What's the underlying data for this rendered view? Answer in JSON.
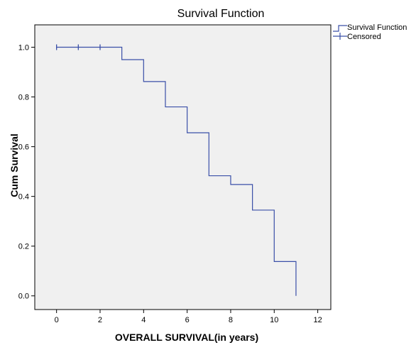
{
  "chart_data": {
    "type": "line",
    "title": "Survival Function",
    "xlabel": "OVERALL SURVIVAL(in years)",
    "ylabel": "Cum Survival",
    "xlim": [
      -1,
      12.6
    ],
    "ylim": [
      -0.055,
      1.09
    ],
    "x_ticks": [
      0,
      2,
      4,
      6,
      8,
      10,
      12
    ],
    "y_ticks": [
      0.0,
      0.2,
      0.4,
      0.6,
      0.8,
      1.0
    ],
    "x_tick_labels": [
      "0",
      "2",
      "4",
      "6",
      "8",
      "10",
      "12"
    ],
    "y_tick_labels": [
      "0.0",
      "0.2",
      "0.4",
      "0.6",
      "0.8",
      "1.0"
    ],
    "grid": false,
    "legend_position": "top-right (outside plot)",
    "series": [
      {
        "name": "Survival Function",
        "step": true,
        "x": [
          0,
          3,
          4,
          5,
          6,
          7,
          8,
          9,
          10,
          11,
          11
        ],
        "y": [
          1.0,
          0.95,
          0.862,
          0.76,
          0.656,
          0.483,
          0.448,
          0.345,
          0.138,
          0.138,
          0.0
        ],
        "color": "#3a4fa8"
      },
      {
        "name": "Censored",
        "marker": "+",
        "x": [
          0,
          1,
          2
        ],
        "y": [
          1.0,
          1.0,
          1.0
        ],
        "color": "#3a4fa8"
      }
    ],
    "plot_background": "#f0f0f0"
  },
  "legend": {
    "items": [
      "Survival Function",
      "Censored"
    ]
  }
}
